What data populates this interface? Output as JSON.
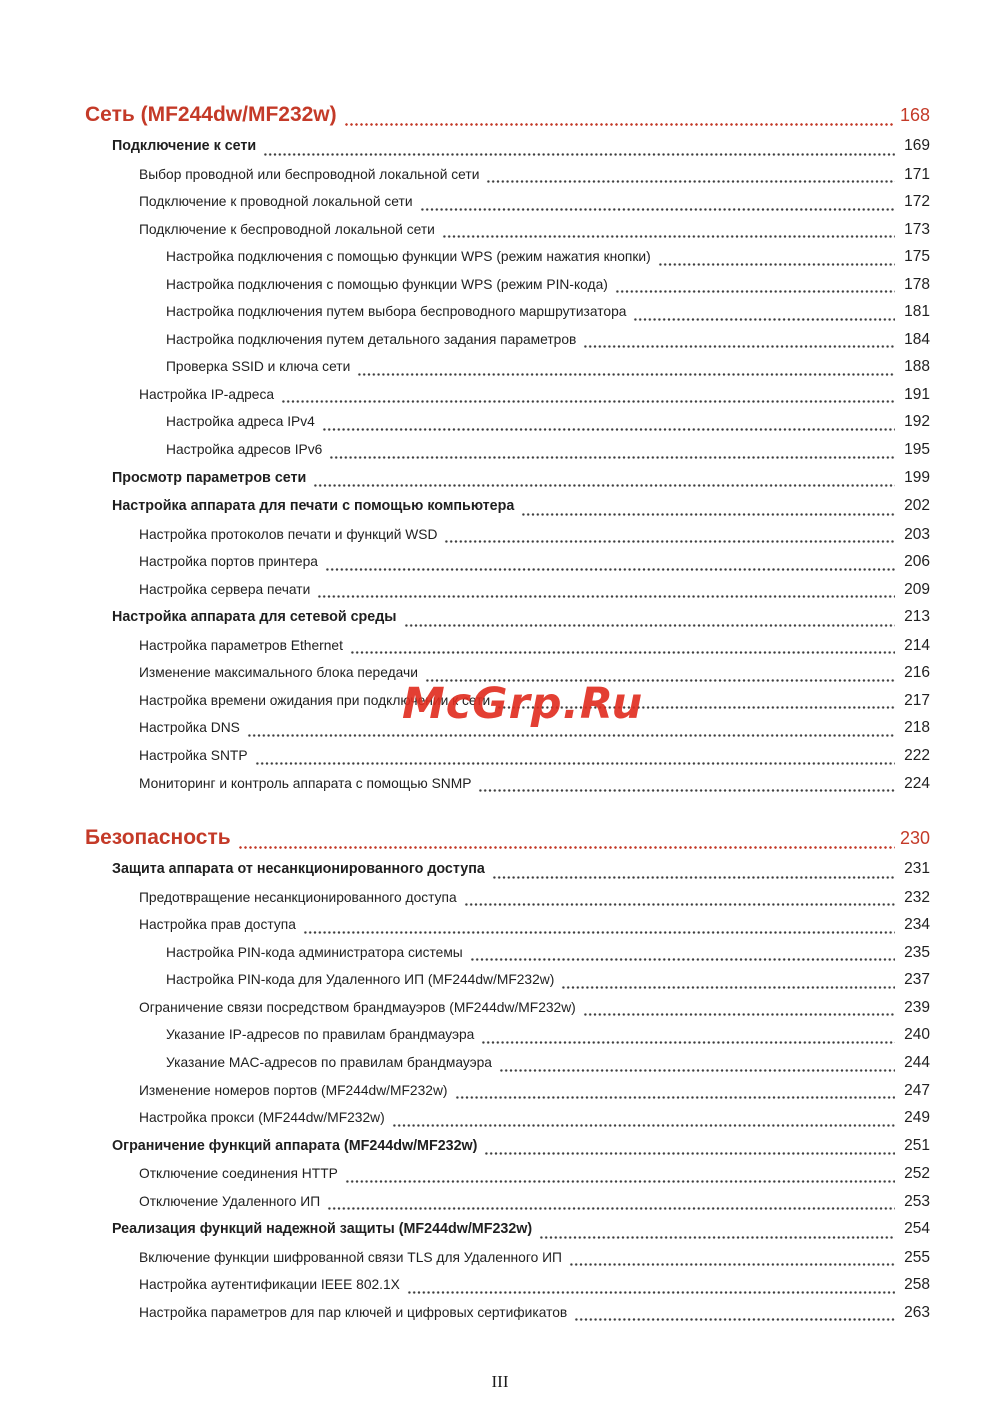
{
  "colors": {
    "accent": "#c43a28",
    "text": "#1f1f1f",
    "dots": "#3c3c3c",
    "watermark": "#e02b1e"
  },
  "watermark": {
    "text": "McGrp.Ru"
  },
  "footer": {
    "page_label": "III"
  },
  "toc": {
    "sections": [
      {
        "title": "Сеть (MF244dw/MF232w)",
        "page": "168",
        "entries": [
          {
            "label": "Подключение к сети",
            "page": "169",
            "level": 1
          },
          {
            "label": "Выбор проводной или беспроводной локальной сети",
            "page": "171",
            "level": 2
          },
          {
            "label": "Подключение к проводной локальной сети",
            "page": "172",
            "level": 2
          },
          {
            "label": "Подключение к беспроводной локальной сети",
            "page": "173",
            "level": 2
          },
          {
            "label": "Настройка подключения с помощью функции WPS (режим нажатия кнопки)",
            "page": "175",
            "level": 3
          },
          {
            "label": "Настройка подключения с помощью функции WPS (режим PIN-кода)",
            "page": "178",
            "level": 3
          },
          {
            "label": "Настройка подключения путем выбора беспроводного маршрутизатора",
            "page": "181",
            "level": 3
          },
          {
            "label": "Настройка подключения путем детального задания параметров",
            "page": "184",
            "level": 3
          },
          {
            "label": "Проверка SSID и ключа сети",
            "page": "188",
            "level": 3
          },
          {
            "label": "Настройка IP-адреса",
            "page": "191",
            "level": 2
          },
          {
            "label": "Настройка адреса IPv4",
            "page": "192",
            "level": 3
          },
          {
            "label": "Настройка адресов IPv6",
            "page": "195",
            "level": 3
          },
          {
            "label": "Просмотр параметров сети",
            "page": "199",
            "level": 1
          },
          {
            "label": "Настройка аппарата для печати с помощью компьютера",
            "page": "202",
            "level": 1
          },
          {
            "label": "Настройка протоколов печати и функций WSD",
            "page": "203",
            "level": 2
          },
          {
            "label": "Настройка портов принтера",
            "page": "206",
            "level": 2
          },
          {
            "label": "Настройка сервера печати",
            "page": "209",
            "level": 2
          },
          {
            "label": "Настройка аппарата для сетевой среды",
            "page": "213",
            "level": 1
          },
          {
            "label": "Настройка параметров Ethernet",
            "page": "214",
            "level": 2
          },
          {
            "label": "Изменение максимального блока передачи",
            "page": "216",
            "level": 2
          },
          {
            "label": "Настройка времени ожидания при подключении к сети",
            "page": "217",
            "level": 2
          },
          {
            "label": "Настройка DNS",
            "page": "218",
            "level": 2
          },
          {
            "label": "Настройка SNTP",
            "page": "222",
            "level": 2
          },
          {
            "label": "Мониторинг и контроль аппарата с помощью SNMP",
            "page": "224",
            "level": 2
          }
        ]
      },
      {
        "title": "Безопасность",
        "page": "230",
        "entries": [
          {
            "label": "Защита аппарата от несанкционированного доступа",
            "page": "231",
            "level": 1
          },
          {
            "label": "Предотвращение несанкционированного доступа",
            "page": "232",
            "level": 2
          },
          {
            "label": "Настройка прав доступа",
            "page": "234",
            "level": 2
          },
          {
            "label": "Настройка PIN-кода администратора системы",
            "page": "235",
            "level": 3
          },
          {
            "label": "Настройка PIN-кода для Удаленного ИП (MF244dw/MF232w)",
            "page": "237",
            "level": 3
          },
          {
            "label": "Ограничение связи посредством брандмауэров (MF244dw/MF232w)",
            "page": "239",
            "level": 2
          },
          {
            "label": "Указание IP-адресов по правилам брандмауэра",
            "page": "240",
            "level": 3
          },
          {
            "label": "Указание MAC-адресов по правилам брандмауэра",
            "page": "244",
            "level": 3
          },
          {
            "label": "Изменение номеров портов (MF244dw/MF232w)",
            "page": "247",
            "level": 2
          },
          {
            "label": "Настройка прокси (MF244dw/MF232w)",
            "page": "249",
            "level": 2
          },
          {
            "label": "Ограничение функций аппарата (MF244dw/MF232w)",
            "page": "251",
            "level": 1
          },
          {
            "label": "Отключение соединения HTTP",
            "page": "252",
            "level": 2
          },
          {
            "label": "Отключение Удаленного ИП",
            "page": "253",
            "level": 2
          },
          {
            "label": "Реализация функций надежной защиты (MF244dw/MF232w)",
            "page": "254",
            "level": 1
          },
          {
            "label": "Включение функции шифрованной связи TLS для Удаленного ИП",
            "page": "255",
            "level": 2
          },
          {
            "label": "Настройка аутентификации IEEE 802.1X",
            "page": "258",
            "level": 2
          },
          {
            "label": "Настройка параметров для пар ключей и цифровых сертификатов",
            "page": "263",
            "level": 2
          }
        ]
      }
    ]
  }
}
